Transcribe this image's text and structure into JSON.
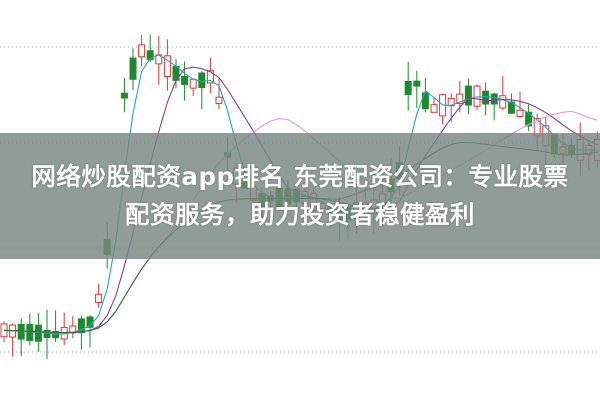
{
  "headline": {
    "line1": "网络炒股配资app排名 东莞配资公司：专业股票",
    "line2": "配资服务，助力投资者稳健盈利"
  },
  "colors": {
    "up_candle": "#d9383a",
    "down_candle": "#1e8a2e",
    "overlay_band": "#78867f",
    "ma_lines": [
      "#2aa6b0",
      "#8a3d8f",
      "#e49ad8",
      "#2c6e3a"
    ]
  },
  "icons": [
    "candlestick-chart-background"
  ]
}
